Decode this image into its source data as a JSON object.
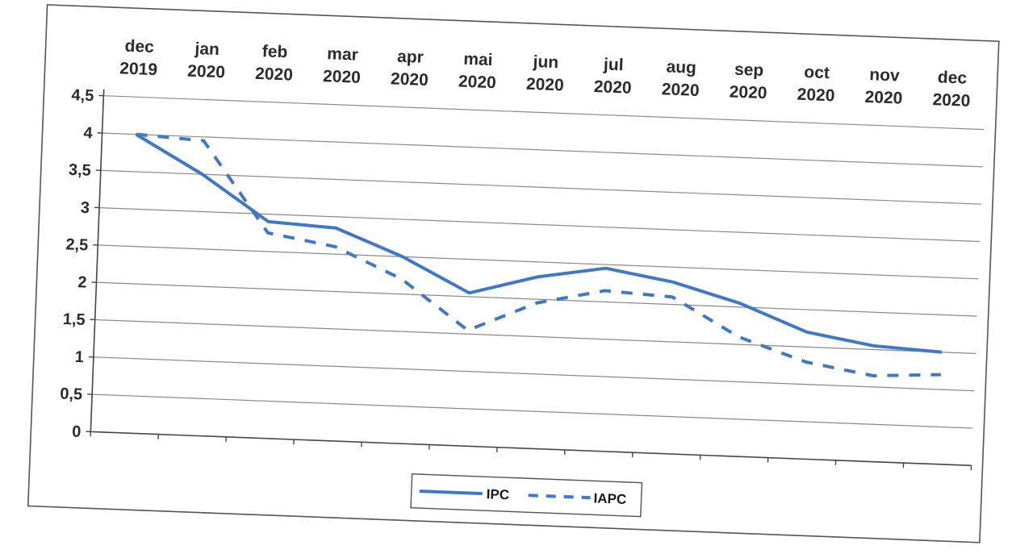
{
  "chart_data": {
    "type": "line",
    "categories": [
      [
        "dec",
        "2019"
      ],
      [
        "jan",
        "2020"
      ],
      [
        "feb",
        "2020"
      ],
      [
        "mar",
        "2020"
      ],
      [
        "apr",
        "2020"
      ],
      [
        "mai",
        "2020"
      ],
      [
        "jun",
        "2020"
      ],
      [
        "jul",
        "2020"
      ],
      [
        "aug",
        "2020"
      ],
      [
        "sep",
        "2020"
      ],
      [
        "oct",
        "2020"
      ],
      [
        "nov",
        "2020"
      ],
      [
        "dec",
        "2020"
      ]
    ],
    "series": [
      {
        "name": "IPC",
        "style": "solid",
        "color": "#3f78c5",
        "values": [
          4.0,
          3.5,
          2.9,
          2.85,
          2.5,
          2.05,
          2.3,
          2.45,
          2.3,
          2.05,
          1.7,
          1.55,
          1.5
        ]
      },
      {
        "name": "IAPC",
        "style": "dashed",
        "color": "#3f78c5",
        "values": [
          4.0,
          3.95,
          2.75,
          2.6,
          2.2,
          1.55,
          1.95,
          2.15,
          2.1,
          1.6,
          1.3,
          1.15,
          1.2
        ]
      }
    ],
    "yticks": [
      "0",
      "0,5",
      "1",
      "1,5",
      "2",
      "2,5",
      "3",
      "3,5",
      "4",
      "4,5"
    ],
    "ylim": [
      0,
      4.5
    ],
    "grid": true,
    "legend": "bottom-center"
  }
}
